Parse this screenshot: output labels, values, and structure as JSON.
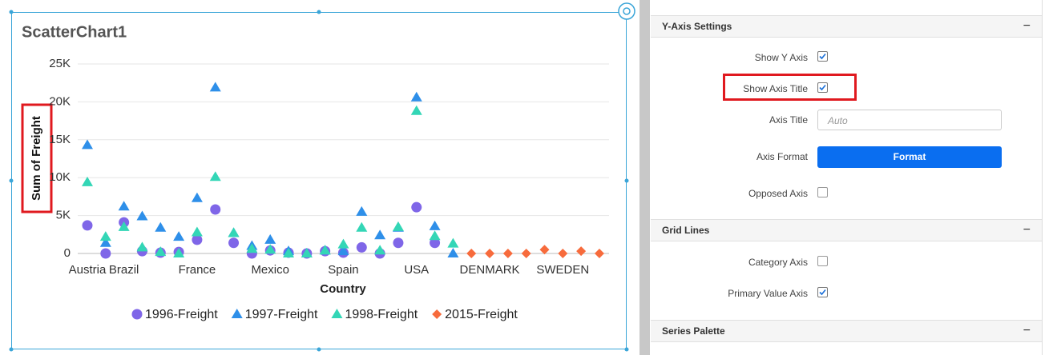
{
  "chart_data": {
    "type": "scatter",
    "title": "ScatterChart1",
    "x_label": "Country",
    "y_label": "Sum of Freight",
    "categories": [
      "Austria",
      null,
      "Brazil",
      null,
      null,
      null,
      "France",
      null,
      null,
      null,
      "Mexico",
      null,
      null,
      null,
      "Spain",
      null,
      null,
      null,
      "USA",
      null,
      null,
      null,
      "DENMARK",
      null,
      null,
      null,
      "SWEDEN",
      null,
      null
    ],
    "series": [
      {
        "name": "1996-Freight",
        "color": "#7f66e8",
        "marker": "circle",
        "values": [
          3700,
          0,
          4100,
          300,
          100,
          200,
          1800,
          5800,
          1400,
          0,
          400,
          100,
          0,
          300,
          100,
          800,
          0,
          1400,
          6100,
          1400,
          null,
          null,
          null,
          null,
          null,
          null,
          null,
          null,
          null
        ]
      },
      {
        "name": "1997-Freight",
        "color": "#2e8fe9",
        "marker": "triangle",
        "values": [
          14300,
          1400,
          6200,
          4900,
          3400,
          2200,
          7300,
          21900,
          2700,
          1000,
          1800,
          300,
          0,
          400,
          300,
          5500,
          2400,
          3400,
          20600,
          3600,
          0,
          null,
          null,
          null,
          null,
          null,
          null,
          null,
          null
        ]
      },
      {
        "name": "1998-Freight",
        "color": "#33d6b6",
        "marker": "triangle",
        "values": [
          9400,
          2200,
          3500,
          800,
          200,
          0,
          2800,
          10100,
          2700,
          600,
          500,
          0,
          0,
          400,
          1200,
          3400,
          400,
          3500,
          18800,
          2300,
          1300,
          null,
          null,
          null,
          null,
          null,
          null,
          null,
          null
        ]
      },
      {
        "name": "2015-Freight",
        "color": "#f76b3c",
        "marker": "diamond",
        "values": [
          null,
          null,
          null,
          null,
          null,
          null,
          null,
          null,
          null,
          null,
          null,
          null,
          null,
          null,
          null,
          null,
          null,
          null,
          null,
          null,
          null,
          0,
          0,
          0,
          0,
          500,
          0,
          300,
          0
        ]
      }
    ],
    "ylim": [
      0,
      25000
    ],
    "yticks": [
      0,
      {
        "value": 5000,
        "label": "5K"
      },
      {
        "value": 10000,
        "label": "10K"
      },
      {
        "value": 15000,
        "label": "15K"
      },
      {
        "value": 20000,
        "label": "20K"
      },
      {
        "value": 25000,
        "label": "25K"
      }
    ],
    "grid": true
  },
  "panel": {
    "sections": [
      {
        "title": "Y-Axis Settings",
        "toggle": "−"
      },
      {
        "title": "Grid Lines",
        "toggle": "−"
      },
      {
        "title": "Series Palette",
        "toggle": "−"
      }
    ],
    "show_y_axis": {
      "label": "Show Y Axis",
      "checked": true
    },
    "show_axis_title": {
      "label": "Show Axis Title",
      "checked": true
    },
    "axis_title": {
      "label": "Axis Title",
      "placeholder": "Auto"
    },
    "axis_format": {
      "label": "Axis Format",
      "button": "Format"
    },
    "opposed_axis": {
      "label": "Opposed Axis",
      "checked": false
    },
    "category_axis": {
      "label": "Category Axis",
      "checked": false
    },
    "primary_value_axis": {
      "label": "Primary Value Axis",
      "checked": true
    }
  }
}
